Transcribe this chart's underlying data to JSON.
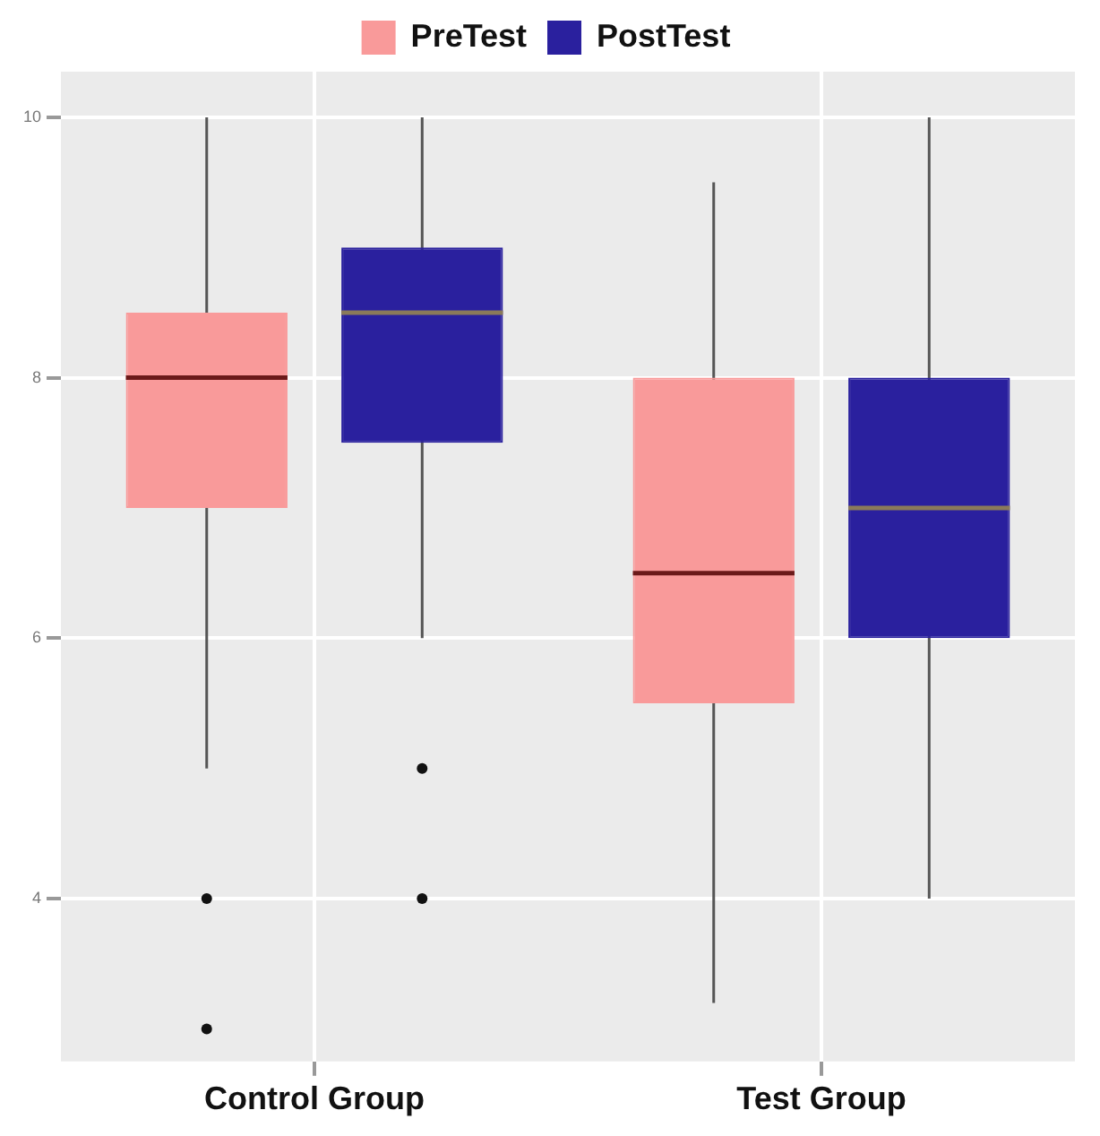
{
  "chart_data": {
    "type": "box",
    "categories": [
      "Control Group",
      "Test Group"
    ],
    "series": [
      {
        "name": "PreTest",
        "color": "#f99a9a",
        "boxes": [
          {
            "low": 5,
            "q1": 7,
            "median": 8,
            "q3": 8.5,
            "high": 10,
            "outliers": [
              4,
              3
            ]
          },
          {
            "low": 3.2,
            "q1": 5.5,
            "median": 6.5,
            "q3": 8,
            "high": 9.5
          }
        ]
      },
      {
        "name": "PostTest",
        "color": "#2a209e",
        "boxes": [
          {
            "low": 6,
            "q1": 7.5,
            "median": 8.5,
            "q3": 9,
            "high": 10,
            "outliers": [
              5,
              4
            ]
          },
          {
            "low": 4,
            "q1": 6,
            "median": 7,
            "q3": 8,
            "high": 10
          }
        ]
      }
    ],
    "ylim": [
      2.75,
      10.35
    ],
    "yticks": [
      4,
      6,
      8,
      10
    ],
    "grid": true,
    "legend": "top"
  }
}
